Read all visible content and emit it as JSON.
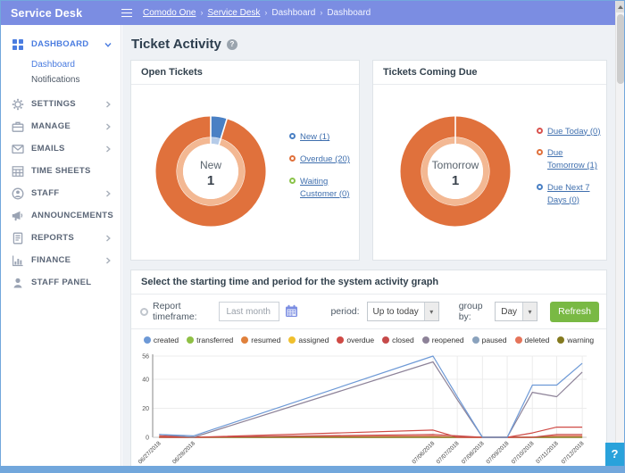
{
  "app": {
    "title": "Service Desk"
  },
  "header": {
    "breadcrumb": [
      {
        "label": "Comodo One",
        "link": true
      },
      {
        "label": "Service Desk",
        "link": true
      },
      {
        "label": "Dashboard",
        "link": false
      },
      {
        "label": "Dashboard",
        "link": false
      }
    ]
  },
  "sidebar": {
    "items": [
      {
        "label": "DASHBOARD",
        "icon": "dashboard-icon",
        "state": "expanded",
        "active": true,
        "children": [
          {
            "label": "Dashboard",
            "active": true
          },
          {
            "label": "Notifications",
            "active": false
          }
        ]
      },
      {
        "label": "SETTINGS",
        "icon": "gear-icon",
        "state": "collapsed"
      },
      {
        "label": "MANAGE",
        "icon": "briefcase-icon",
        "state": "collapsed"
      },
      {
        "label": "EMAILS",
        "icon": "envelope-icon",
        "state": "collapsed"
      },
      {
        "label": "TIME SHEETS",
        "icon": "table-icon",
        "state": "none"
      },
      {
        "label": "STAFF",
        "icon": "person-circle-icon",
        "state": "collapsed"
      },
      {
        "label": "ANNOUNCEMENTS",
        "icon": "megaphone-icon",
        "state": "none"
      },
      {
        "label": "REPORTS",
        "icon": "report-icon",
        "state": "collapsed"
      },
      {
        "label": "FINANCE",
        "icon": "finance-icon",
        "state": "collapsed"
      },
      {
        "label": "STAFF PANEL",
        "icon": "person-icon",
        "state": "none"
      }
    ]
  },
  "page": {
    "title": "Ticket Activity"
  },
  "activity": {
    "panel_title": "Select the starting time and period for the system activity graph",
    "timeframe_label": "Report timeframe:",
    "timeframe_value": "Last month",
    "period_label": "period:",
    "period_value": "Up to today",
    "groupby_label": "group by:",
    "groupby_value": "Day",
    "refresh_label": "Refresh"
  },
  "colors": {
    "accent_header": "#7b8de2",
    "sidebar_active": "#4a7ce0",
    "donut_orange": "#e0713c",
    "donut_blue": "#4a80c4",
    "refresh_green": "#79b944",
    "help_blue": "#29a2db"
  },
  "chart_data": [
    {
      "id": "open-tickets-donut",
      "type": "pie",
      "title": "Open Tickets",
      "center": {
        "label": "New",
        "value": "1"
      },
      "slices": [
        {
          "label": "New (1)",
          "value": 1,
          "color": "#4a80c4"
        },
        {
          "label": "Overdue (20)",
          "value": 20,
          "color": "#e0713c"
        },
        {
          "label": "Waiting Customer (0)",
          "value": 0,
          "color": "#8bc34a"
        }
      ]
    },
    {
      "id": "tickets-coming-due-donut",
      "type": "pie",
      "title": "Tickets Coming Due",
      "center": {
        "label": "Tomorrow",
        "value": "1"
      },
      "slices": [
        {
          "label": "Due Today (0)",
          "value": 0,
          "color": "#d9534f"
        },
        {
          "label": "Due Tomorrow (1)",
          "value": 1,
          "color": "#e0713c"
        },
        {
          "label": "Due Next 7 Days (0)",
          "value": 0,
          "color": "#4a80c4"
        }
      ]
    },
    {
      "id": "system-activity-line",
      "type": "line",
      "title": "System activity graph",
      "x_labels": [
        "06/27/2018",
        "06/28/2018",
        "07/06/2018",
        "07/07/2018",
        "07/08/2018",
        "07/09/2018",
        "07/10/2018",
        "07/11/2018",
        "07/12/2018"
      ],
      "x_positions": [
        0.015,
        0.094,
        0.646,
        0.702,
        0.76,
        0.817,
        0.875,
        0.931,
        0.99
      ],
      "ylim": [
        0,
        56
      ],
      "yticks": [
        0,
        20,
        40,
        56
      ],
      "grid": true,
      "legend_position": "top",
      "series": [
        {
          "name": "created",
          "color": "#6d99d6",
          "values": [
            2,
            1,
            56,
            28,
            0,
            0,
            36,
            36,
            51
          ]
        },
        {
          "name": "transferred",
          "color": "#8fc045",
          "values": [
            0,
            0,
            0,
            0,
            0,
            0,
            0,
            0,
            0
          ]
        },
        {
          "name": "resumed",
          "color": "#e0813c",
          "values": [
            0,
            0,
            0,
            0,
            0,
            0,
            0,
            0,
            0
          ]
        },
        {
          "name": "assigned",
          "color": "#f0c02e",
          "values": [
            0,
            0,
            0,
            0,
            0,
            0,
            0,
            0,
            0
          ]
        },
        {
          "name": "overdue",
          "color": "#cf4a45",
          "values": [
            1,
            0,
            5,
            0,
            0,
            0,
            3,
            7,
            7
          ]
        },
        {
          "name": "closed",
          "color": "#c64a4a",
          "values": [
            0,
            0,
            2,
            1,
            0,
            0,
            0,
            2,
            2
          ]
        },
        {
          "name": "reopened",
          "color": "#8d8298",
          "values": [
            2,
            0,
            52,
            26,
            0,
            0,
            31,
            28,
            45
          ]
        },
        {
          "name": "paused",
          "color": "#8aa2bd",
          "values": [
            0,
            0,
            0,
            0,
            0,
            0,
            0,
            0,
            0
          ]
        },
        {
          "name": "deleted",
          "color": "#e5745a",
          "values": [
            0,
            0,
            1,
            0,
            0,
            0,
            0,
            1,
            1
          ]
        },
        {
          "name": "warning",
          "color": "#847a1f",
          "values": [
            0,
            0,
            0,
            0,
            0,
            0,
            0,
            0,
            0
          ]
        }
      ]
    }
  ]
}
